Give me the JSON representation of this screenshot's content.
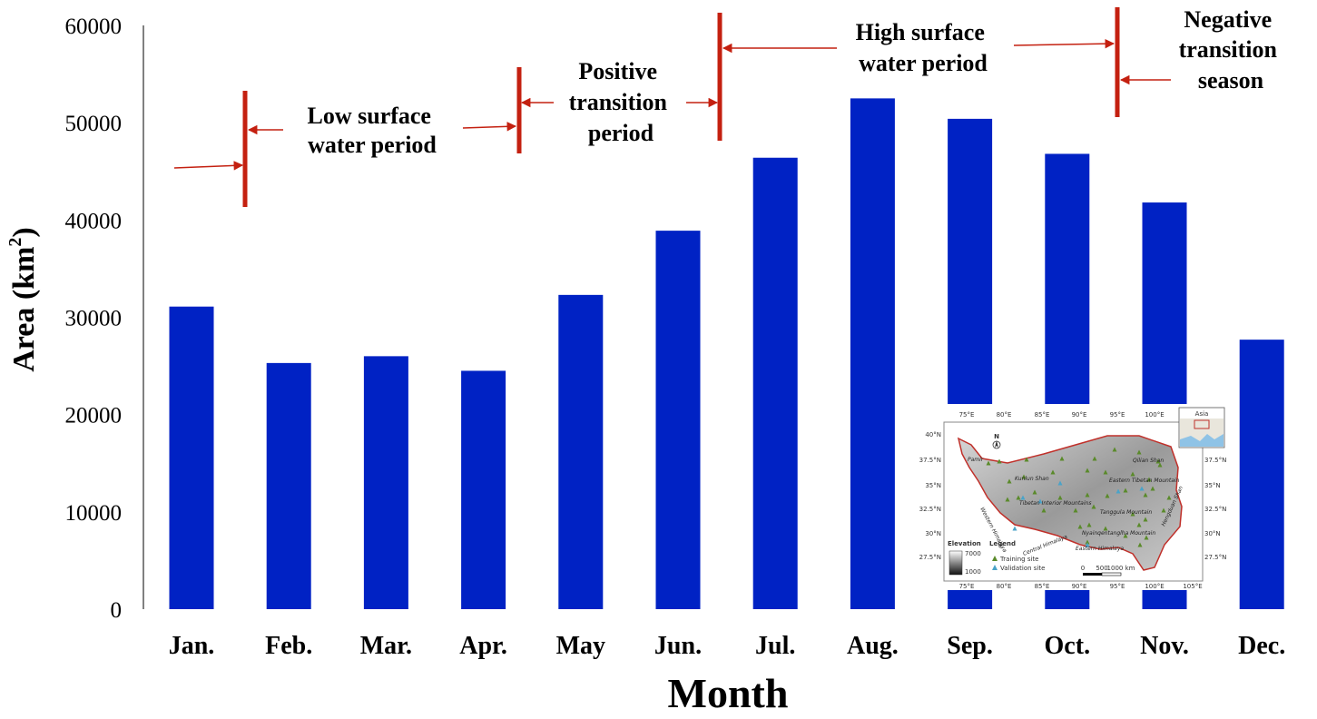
{
  "chart_data": {
    "type": "bar",
    "categories": [
      "Jan.",
      "Feb.",
      "Mar.",
      "Apr.",
      "May",
      "Jun.",
      "Jul.",
      "Aug.",
      "Sep.",
      "Oct.",
      "Nov.",
      "Dec."
    ],
    "values": [
      31100,
      25300,
      26000,
      24500,
      32300,
      38900,
      46400,
      52500,
      50400,
      46800,
      41800,
      27700
    ],
    "xlabel": "Month",
    "ylabel": "Area (km",
    "ylabel_superscript": "2",
    "ylabel_close": ")",
    "ylim": [
      0,
      60000
    ],
    "yticks": [
      0,
      10000,
      20000,
      30000,
      40000,
      50000,
      60000
    ],
    "grid": false,
    "bar_color": "#0022c4",
    "annotations": [
      {
        "lines": [
          "Low surface",
          "water period"
        ]
      },
      {
        "lines": [
          "Positive",
          "transition",
          "period"
        ]
      },
      {
        "lines": [
          "High surface",
          "water period"
        ]
      },
      {
        "lines": [
          "Negative",
          "transition",
          "season"
        ]
      }
    ],
    "divider_color": "#c42010"
  },
  "inset_map": {
    "lon_labels": [
      "75°E",
      "80°E",
      "85°E",
      "90°E",
      "95°E",
      "100°E",
      "105°E"
    ],
    "lat_labels": [
      "40°N",
      "37.5°N",
      "35°N",
      "32.5°N",
      "30°N",
      "27.5°N"
    ],
    "north": "N",
    "locator_label": "Asia",
    "elevation_title": "Elevation",
    "elevation_max": "7000",
    "elevation_min": "1000",
    "legend_title": "Legend",
    "legend_training": "Training site",
    "legend_validation": "Validation site",
    "scale_labels": [
      "0",
      "500",
      "1000 km"
    ],
    "region_names": [
      "Kunlun Shan",
      "Qilian Shan",
      "Eastern Tibetan Mountain",
      "Tibetan Interior Mountains",
      "Tanggula Mountain",
      "Nyainqentanglha Mountain",
      "Eastern Himalaya",
      "Western Himalaya",
      "Central Himalaya",
      "Hengduan Shan",
      "Pamir"
    ]
  }
}
